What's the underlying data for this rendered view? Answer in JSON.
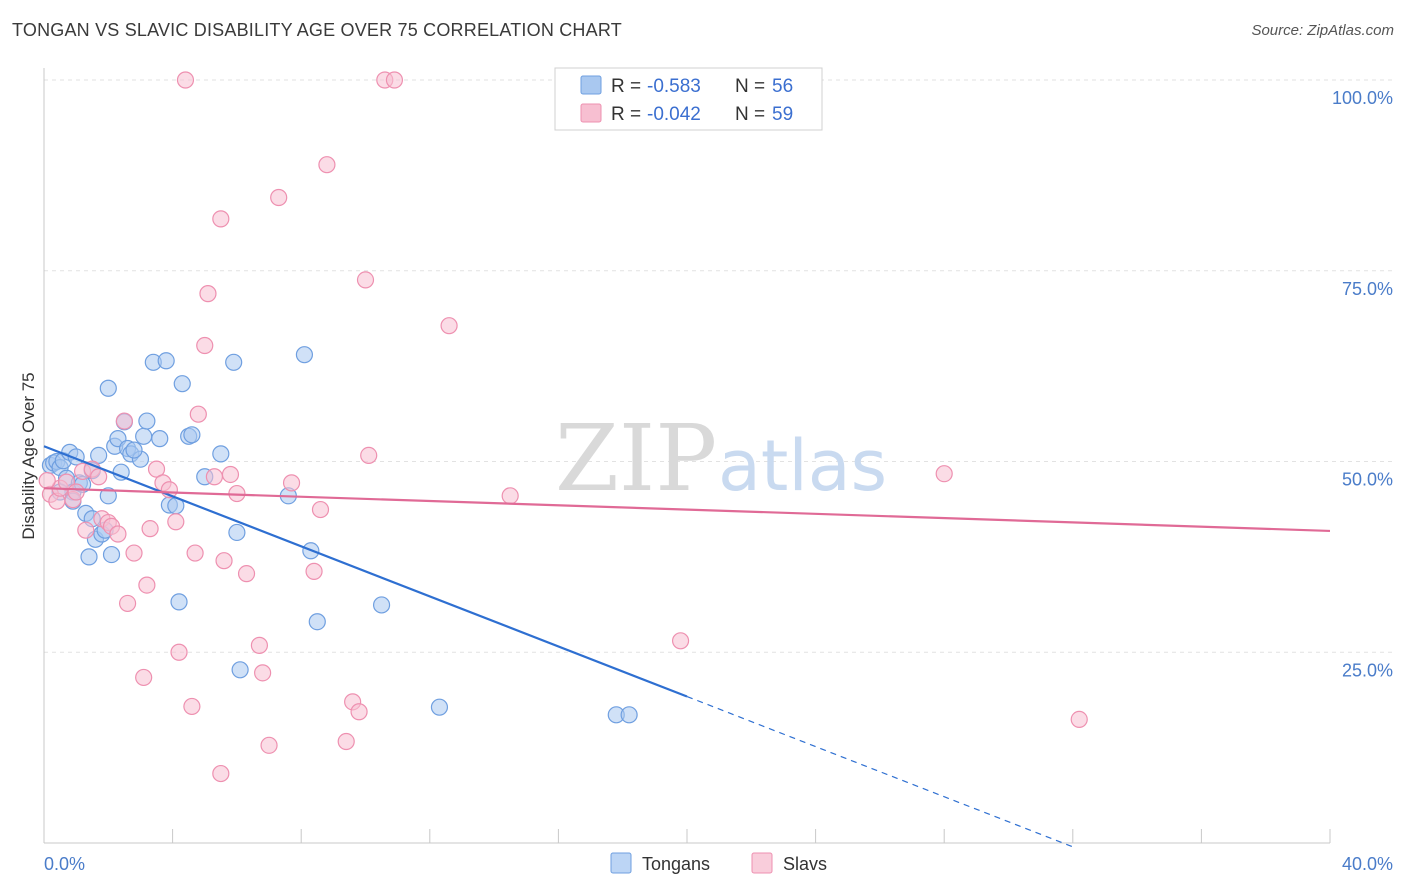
{
  "header": {
    "title": "TONGAN VS SLAVIC DISABILITY AGE OVER 75 CORRELATION CHART",
    "source": "Source: ZipAtlas.com"
  },
  "legend": {
    "entries": [
      {
        "r_label": "R =",
        "r_value": "-0.583",
        "n_label": "N =",
        "n_value": "56",
        "color": "#a9c8f0",
        "stroke": "#6f9fe0"
      },
      {
        "r_label": "R =",
        "r_value": "-0.042",
        "n_label": "N =",
        "n_value": "59",
        "color": "#f7bfd1",
        "stroke": "#ee90b0"
      }
    ]
  },
  "watermark": {
    "zip": "ZIP",
    "atlas": "atlas"
  },
  "bottom_legend": [
    {
      "label": "Tongans",
      "color": "#bcd5f5",
      "stroke": "#6f9fe0"
    },
    {
      "label": "Slavs",
      "color": "#f9cddb",
      "stroke": "#ee90b0"
    }
  ],
  "chart_data": {
    "type": "scatter",
    "title": "TONGAN VS SLAVIC DISABILITY AGE OVER 75 CORRELATION CHART",
    "xlabel": "",
    "ylabel": "Disability Age Over 75",
    "xlim": [
      0,
      40
    ],
    "ylim": [
      0,
      100
    ],
    "x_tick_labels": [
      {
        "value": 0,
        "label": "0.0%"
      },
      {
        "value": 40,
        "label": "40.0%"
      }
    ],
    "y_tick_labels": [
      {
        "value": 100,
        "label": "100.0%"
      },
      {
        "value": 75,
        "label": "75.0%"
      },
      {
        "value": 50,
        "label": "50.0%"
      },
      {
        "value": 25,
        "label": "25.0%"
      }
    ],
    "grid": true,
    "legend_position": "top-center",
    "series": [
      {
        "name": "Tongans",
        "color": "#6f9fe0",
        "fill": "#a9c8f0",
        "trend": {
          "x0": 0,
          "y0": 52.0,
          "x1": 20,
          "y1": 19.2,
          "dashed_to_x": 32,
          "dashed_to_y": -0.5,
          "color": "#2e6fd1"
        },
        "points": [
          [
            0.2,
            49.5
          ],
          [
            0.3,
            49.8
          ],
          [
            0.4,
            50.0
          ],
          [
            0.5,
            49.2
          ],
          [
            0.6,
            50.1
          ],
          [
            0.7,
            47.8
          ],
          [
            0.8,
            51.2
          ],
          [
            0.9,
            46.0
          ],
          [
            1.0,
            50.6
          ],
          [
            1.1,
            47.2
          ],
          [
            1.3,
            43.2
          ],
          [
            1.4,
            37.5
          ],
          [
            1.5,
            42.5
          ],
          [
            1.6,
            39.8
          ],
          [
            1.7,
            50.8
          ],
          [
            1.8,
            40.5
          ],
          [
            1.9,
            41.0
          ],
          [
            2.0,
            45.5
          ],
          [
            2.0,
            59.6
          ],
          [
            2.1,
            37.8
          ],
          [
            2.2,
            52.0
          ],
          [
            2.3,
            53.0
          ],
          [
            2.4,
            48.6
          ],
          [
            2.5,
            55.2
          ],
          [
            2.6,
            51.7
          ],
          [
            2.7,
            51.0
          ],
          [
            3.0,
            50.3
          ],
          [
            3.1,
            53.3
          ],
          [
            3.2,
            55.3
          ],
          [
            3.4,
            63.0
          ],
          [
            3.6,
            53.0
          ],
          [
            3.8,
            63.2
          ],
          [
            3.9,
            44.3
          ],
          [
            4.1,
            44.2
          ],
          [
            4.2,
            31.6
          ],
          [
            4.3,
            60.2
          ],
          [
            4.5,
            53.3
          ],
          [
            4.6,
            53.5
          ],
          [
            5.0,
            48.0
          ],
          [
            5.5,
            51.0
          ],
          [
            5.9,
            63.0
          ],
          [
            6.0,
            40.7
          ],
          [
            6.1,
            22.7
          ],
          [
            7.6,
            45.5
          ],
          [
            8.1,
            64.0
          ],
          [
            8.3,
            38.3
          ],
          [
            8.5,
            29.0
          ],
          [
            10.5,
            31.2
          ],
          [
            12.3,
            17.8
          ],
          [
            17.8,
            16.8
          ],
          [
            18.2,
            16.8
          ],
          [
            0.5,
            46.0
          ],
          [
            1.2,
            47.0
          ],
          [
            0.9,
            44.8
          ],
          [
            2.8,
            51.5
          ],
          [
            1.5,
            48.8
          ]
        ]
      },
      {
        "name": "Slavs",
        "color": "#ee90b0",
        "fill": "#f7bfd1",
        "trend": {
          "x0": 0,
          "y0": 46.5,
          "x1": 40,
          "y1": 40.9,
          "color": "#e06a96"
        },
        "points": [
          [
            0.2,
            45.7
          ],
          [
            0.4,
            44.8
          ],
          [
            0.5,
            46.5
          ],
          [
            0.7,
            47.3
          ],
          [
            0.9,
            45.0
          ],
          [
            1.0,
            46.0
          ],
          [
            1.2,
            48.7
          ],
          [
            1.3,
            41.0
          ],
          [
            1.5,
            49.0
          ],
          [
            1.7,
            48.0
          ],
          [
            1.8,
            42.5
          ],
          [
            2.0,
            42.0
          ],
          [
            2.1,
            41.5
          ],
          [
            2.3,
            40.5
          ],
          [
            2.5,
            55.3
          ],
          [
            2.6,
            31.4
          ],
          [
            2.8,
            38.0
          ],
          [
            3.1,
            21.7
          ],
          [
            3.2,
            33.8
          ],
          [
            3.3,
            41.2
          ],
          [
            3.5,
            49.0
          ],
          [
            3.7,
            47.2
          ],
          [
            3.9,
            46.3
          ],
          [
            4.1,
            42.1
          ],
          [
            4.2,
            25.0
          ],
          [
            4.4,
            100.0
          ],
          [
            4.6,
            17.9
          ],
          [
            4.7,
            38.0
          ],
          [
            4.8,
            56.2
          ],
          [
            5.0,
            65.2
          ],
          [
            5.1,
            72.0
          ],
          [
            5.3,
            48.0
          ],
          [
            5.5,
            81.8
          ],
          [
            5.6,
            37.0
          ],
          [
            5.8,
            48.3
          ],
          [
            6.0,
            45.8
          ],
          [
            5.5,
            9.1
          ],
          [
            6.3,
            35.3
          ],
          [
            6.7,
            25.9
          ],
          [
            6.8,
            22.3
          ],
          [
            7.0,
            12.8
          ],
          [
            7.3,
            84.6
          ],
          [
            7.7,
            47.2
          ],
          [
            8.4,
            35.6
          ],
          [
            8.6,
            43.7
          ],
          [
            8.8,
            88.9
          ],
          [
            9.4,
            13.3
          ],
          [
            9.6,
            18.5
          ],
          [
            9.8,
            17.2
          ],
          [
            10.0,
            73.8
          ],
          [
            10.1,
            50.8
          ],
          [
            10.6,
            100.0
          ],
          [
            10.9,
            100.0
          ],
          [
            12.6,
            67.8
          ],
          [
            14.5,
            45.5
          ],
          [
            19.8,
            26.5
          ],
          [
            28.0,
            48.4
          ],
          [
            32.2,
            16.2
          ],
          [
            0.1,
            47.5
          ]
        ]
      }
    ]
  }
}
